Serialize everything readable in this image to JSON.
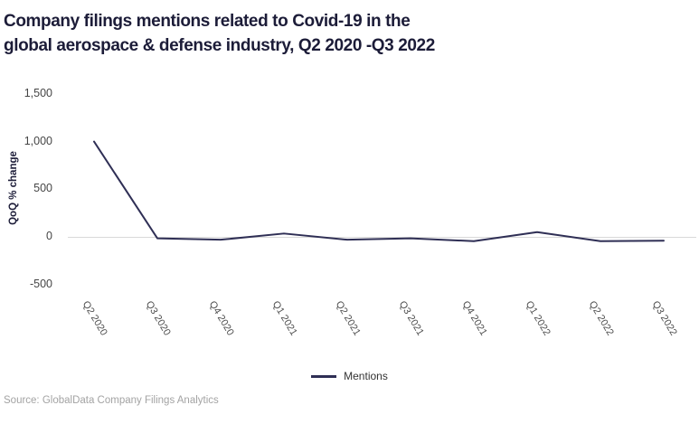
{
  "title_lines": [
    "Company filings mentions related to Covid-19 in the",
    "global aerospace & defense industry, Q2 2020 -Q3 2022"
  ],
  "source": "Source: GlobalData Company Filings Analytics",
  "legend": {
    "label": "Mentions"
  },
  "colors": {
    "line": "#2f2f55",
    "title": "#1c1c38",
    "grid": "#d9d9d9",
    "source": "#a3a3a3"
  },
  "chart_data": {
    "type": "line",
    "title": "Company filings mentions related to Covid-19 in the global aerospace & defense industry, Q2 2020 -Q3 2022",
    "categories": [
      "Q2 2020",
      "Q3 2020",
      "Q4 2020",
      "Q1 2021",
      "Q2 2021",
      "Q3 2021",
      "Q4 2021",
      "Q1 2022",
      "Q2 2022",
      "Q3 2022"
    ],
    "series": [
      {
        "name": "Mentions",
        "values": [
          1000,
          -15,
          -30,
          35,
          -30,
          -15,
          -45,
          50,
          -45,
          -40
        ]
      }
    ],
    "xlabel": "",
    "ylabel": "QoQ % change",
    "ylim": [
      -500,
      1500
    ],
    "yticks": [
      1500,
      1000,
      500,
      0,
      -500
    ],
    "ytick_labels": [
      "1,500",
      "1,000",
      "500",
      "0",
      "-500"
    ],
    "grid": "horizontal line at zero only",
    "legend_position": "bottom-center"
  }
}
